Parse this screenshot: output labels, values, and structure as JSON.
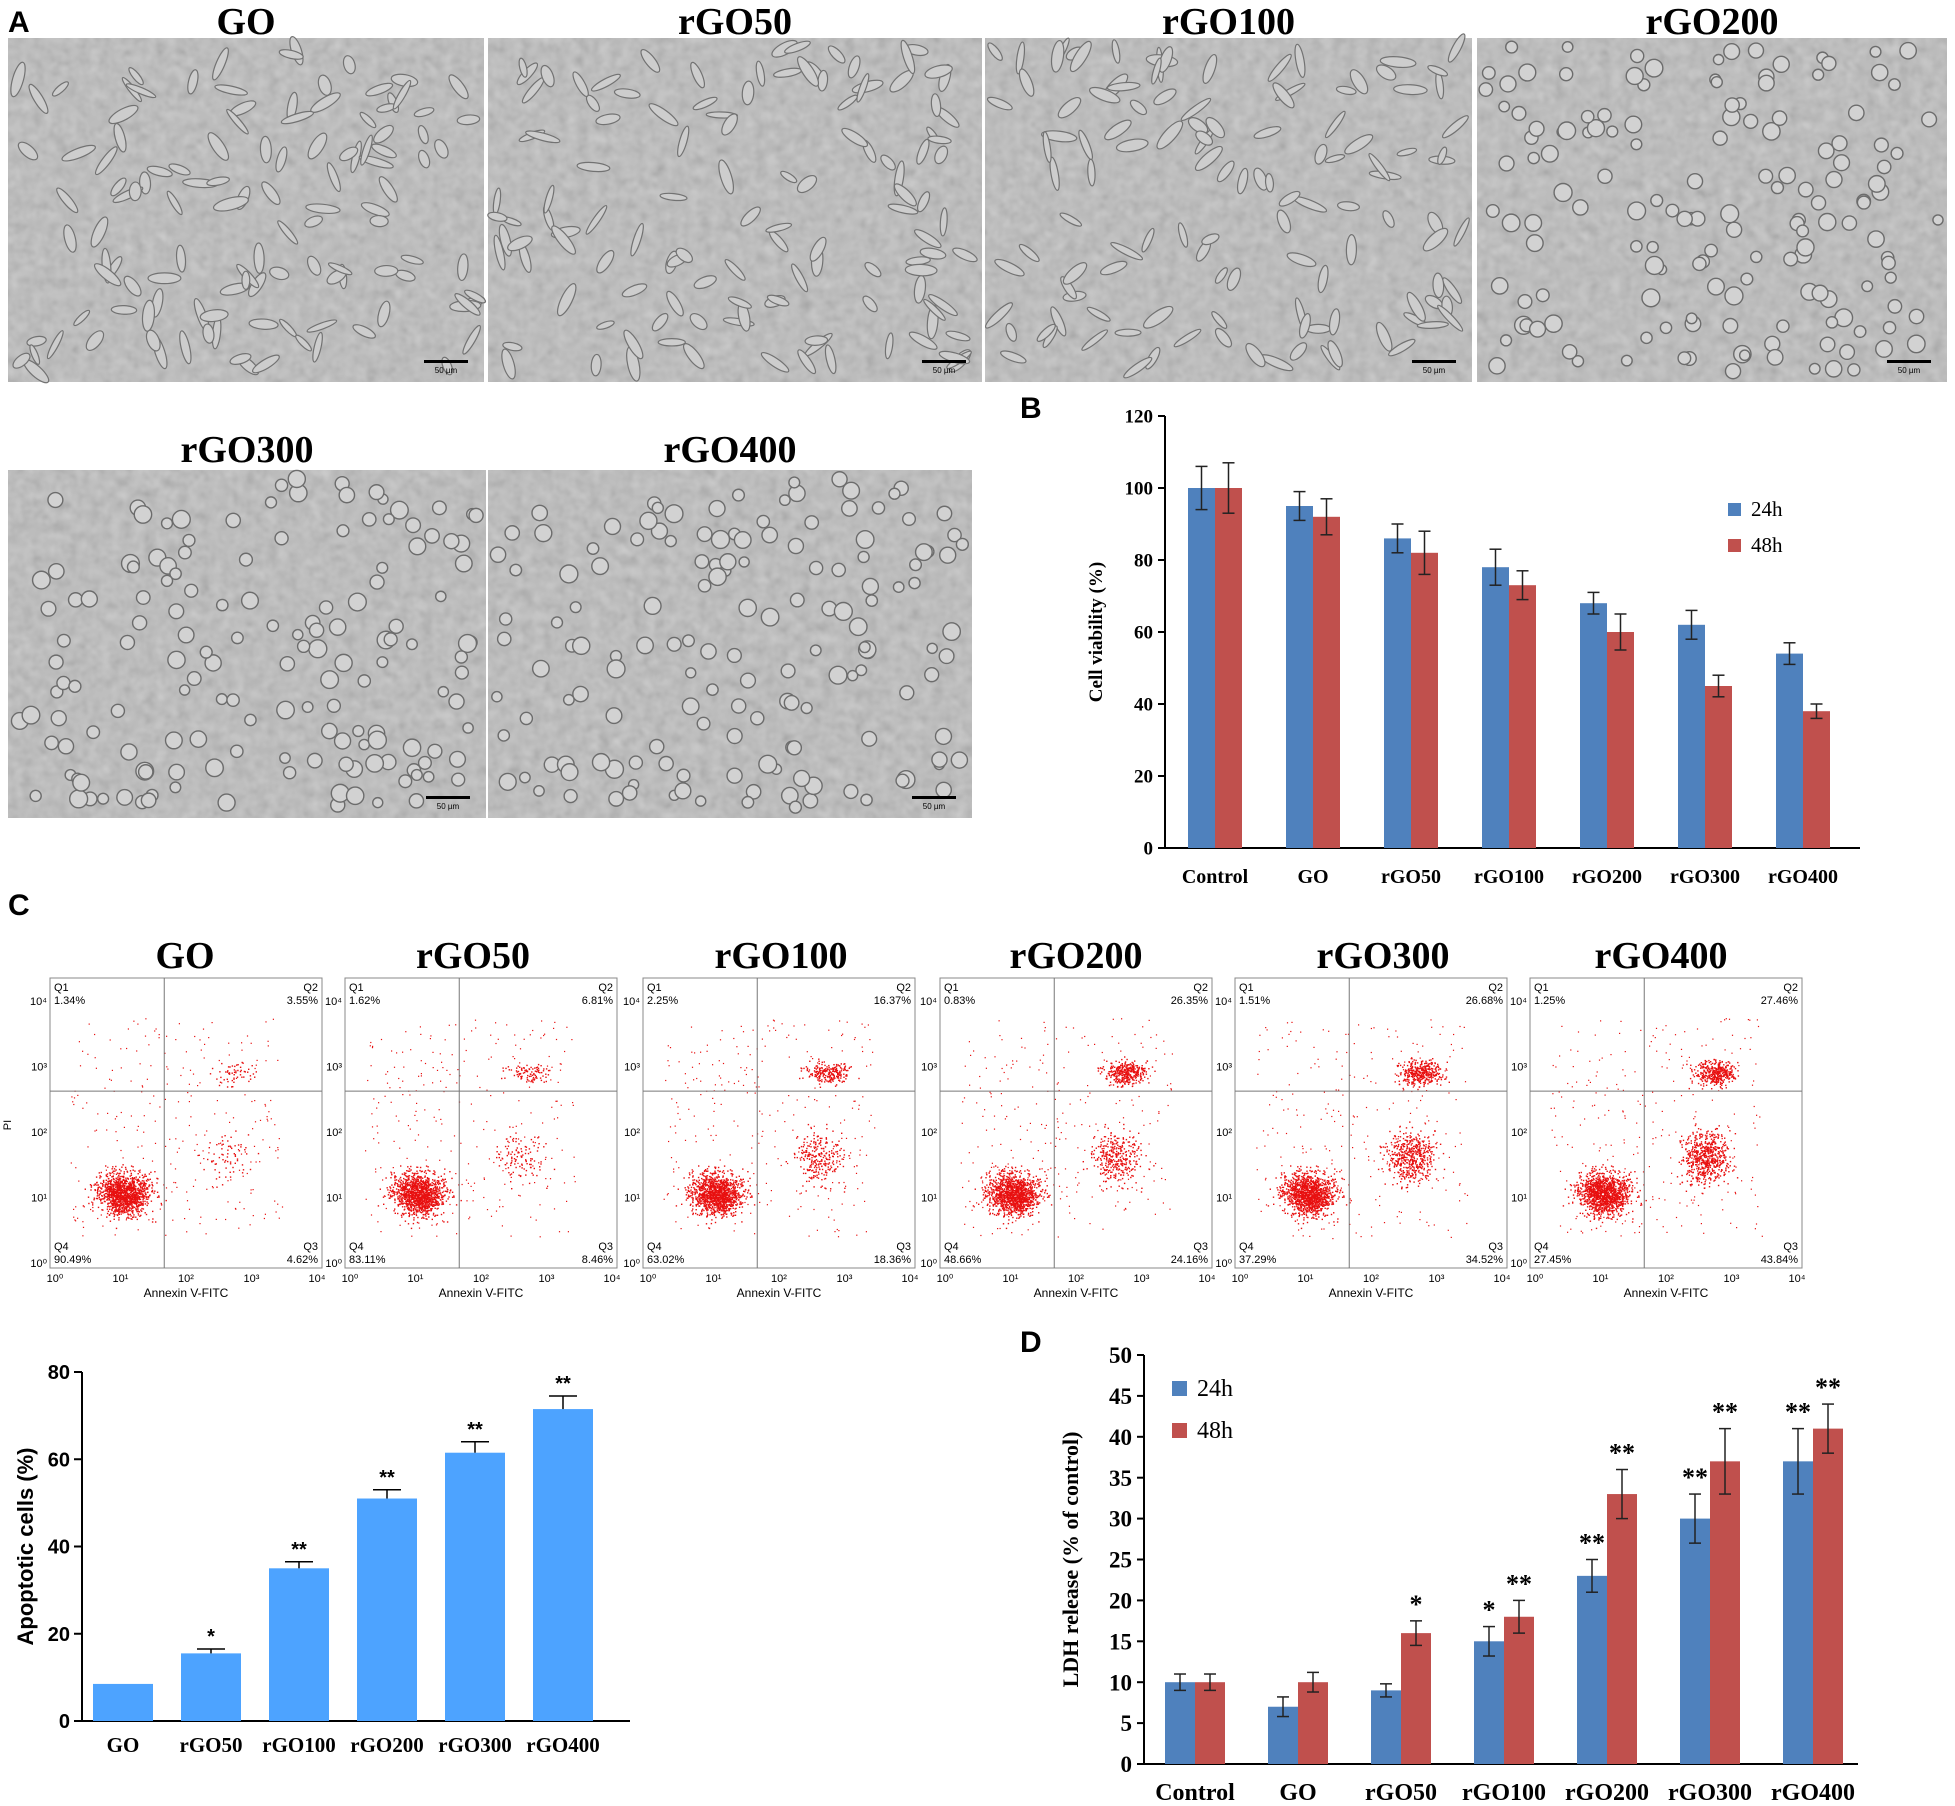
{
  "panel_labels": {
    "a": "A",
    "b": "B",
    "c": "C",
    "d": "D"
  },
  "colors": {
    "blue24": "#4f81bd",
    "red48": "#c0504d",
    "apopt": "#4da3ff",
    "dots": "#e81010"
  },
  "micrographs": [
    {
      "title": "GO",
      "scale": "50 µm"
    },
    {
      "title": "rGO50",
      "scale": "50 µm"
    },
    {
      "title": "rGO100",
      "scale": "50 µm"
    },
    {
      "title": "rGO200",
      "scale": "50 µm"
    },
    {
      "title": "rGO300",
      "scale": "50 µm"
    },
    {
      "title": "rGO400",
      "scale": "50 µm"
    }
  ],
  "flow": {
    "ylabel": "PI",
    "xlabel": "Annexin V-FITC",
    "ticks": [
      "10⁰",
      "10¹",
      "10²",
      "10³",
      "10⁴"
    ],
    "plots": [
      {
        "title": "GO",
        "q1": "Q1",
        "q1v": "1.34%",
        "q2": "Q2",
        "q2v": "3.55%",
        "q3": "Q3",
        "q3v": "4.62%",
        "q4": "Q4",
        "q4v": "90.49%"
      },
      {
        "title": "rGO50",
        "q1": "Q1",
        "q1v": "1.62%",
        "q2": "Q2",
        "q2v": "6.81%",
        "q3": "Q3",
        "q3v": "8.46%",
        "q4": "Q4",
        "q4v": "83.11%"
      },
      {
        "title": "rGO100",
        "q1": "Q1",
        "q1v": "2.25%",
        "q2": "Q2",
        "q2v": "16.37%",
        "q3": "Q3",
        "q3v": "18.36%",
        "q4": "Q4",
        "q4v": "63.02%"
      },
      {
        "title": "rGO200",
        "q1": "Q1",
        "q1v": "0.83%",
        "q2": "Q2",
        "q2v": "26.35%",
        "q3": "Q3",
        "q3v": "24.16%",
        "q4": "Q4",
        "q4v": "48.66%"
      },
      {
        "title": "rGO300",
        "q1": "Q1",
        "q1v": "1.51%",
        "q2": "Q2",
        "q2v": "26.68%",
        "q3": "Q3",
        "q3v": "34.52%",
        "q4": "Q4",
        "q4v": "37.29%"
      },
      {
        "title": "rGO400",
        "q1": "Q1",
        "q1v": "1.25%",
        "q2": "Q2",
        "q2v": "27.46%",
        "q3": "Q3",
        "q3v": "43.84%",
        "q4": "Q4",
        "q4v": "27.45%"
      }
    ]
  },
  "chart_data": [
    {
      "id": "B",
      "type": "bar",
      "ylabel": "Cell viability (%)",
      "categories": [
        "Control",
        "GO",
        "rGO50",
        "rGO100",
        "rGO200",
        "rGO300",
        "rGO400"
      ],
      "yticks": [
        "0",
        "20",
        "40",
        "60",
        "80",
        "100",
        "120"
      ],
      "ylim": [
        0,
        120
      ],
      "series": [
        {
          "name": "24h",
          "values": [
            100,
            95,
            86,
            78,
            68,
            62,
            54
          ],
          "errors": [
            6,
            4,
            4,
            5,
            3,
            4,
            3
          ]
        },
        {
          "name": "48h",
          "values": [
            100,
            92,
            82,
            73,
            60,
            45,
            38
          ],
          "errors": [
            7,
            5,
            6,
            4,
            5,
            3,
            2
          ]
        }
      ],
      "legend": "right"
    },
    {
      "id": "C",
      "type": "bar",
      "ylabel": "Apoptotic cells (%)",
      "categories": [
        "GO",
        "rGO50",
        "rGO100",
        "rGO200",
        "rGO300",
        "rGO400"
      ],
      "yticks": [
        "0",
        "20",
        "40",
        "60",
        "80"
      ],
      "ylim": [
        0,
        80
      ],
      "values": [
        8.5,
        15.5,
        35,
        51,
        61.5,
        71.5
      ],
      "errors": [
        0,
        1,
        1.5,
        2,
        2.5,
        3
      ],
      "marks": [
        "",
        "*",
        "**",
        "**",
        "**",
        "**"
      ]
    },
    {
      "id": "D",
      "type": "bar",
      "ylabel": "LDH release (% of control)",
      "categories": [
        "Control",
        "GO",
        "rGO50",
        "rGO100",
        "rGO200",
        "rGO300",
        "rGO400"
      ],
      "yticks": [
        "0",
        "5",
        "10",
        "15",
        "20",
        "25",
        "30",
        "35",
        "40",
        "45",
        "50"
      ],
      "ylim": [
        0,
        50
      ],
      "series": [
        {
          "name": "24h",
          "values": [
            10,
            7,
            9,
            15,
            23,
            30,
            37
          ],
          "errors": [
            1,
            1.2,
            0.8,
            1.8,
            2,
            3,
            4
          ],
          "marks": [
            "",
            "",
            "",
            "*",
            "**",
            "**",
            "**"
          ]
        },
        {
          "name": "48h",
          "values": [
            10,
            10,
            16,
            18,
            33,
            37,
            41
          ],
          "errors": [
            1,
            1.2,
            1.5,
            2,
            3,
            4,
            3
          ],
          "marks": [
            "",
            "",
            "*",
            "**",
            "**",
            "**",
            "**"
          ]
        }
      ],
      "legend": "top-left"
    }
  ]
}
